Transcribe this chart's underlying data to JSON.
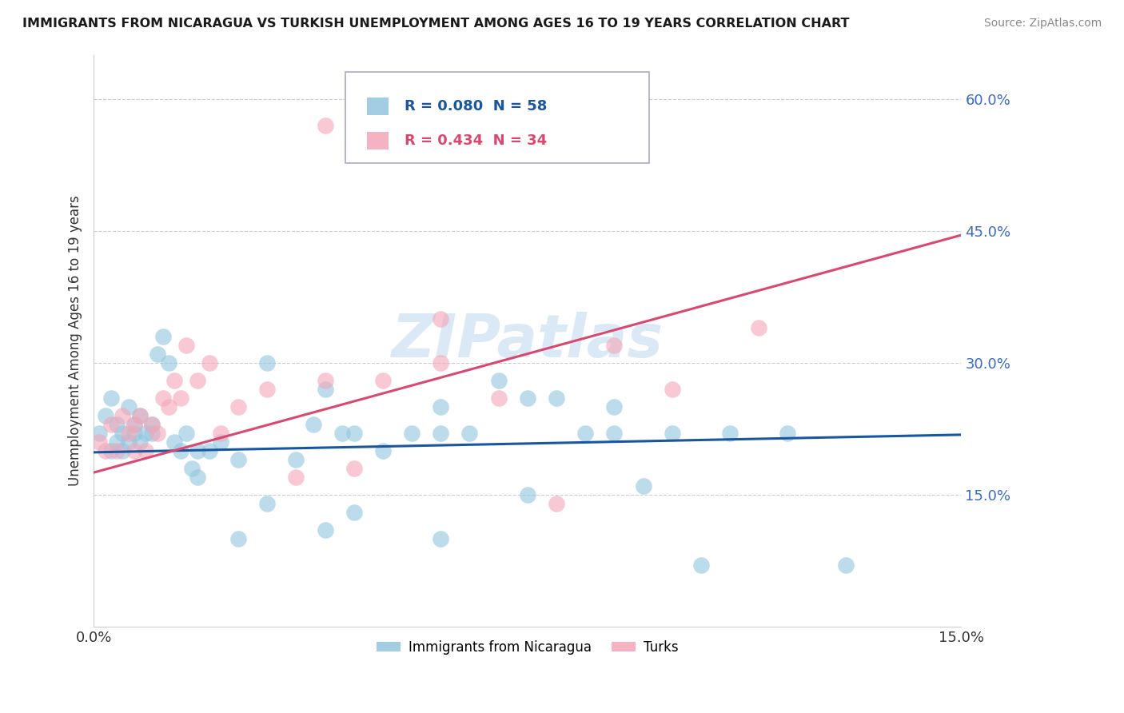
{
  "title": "IMMIGRANTS FROM NICARAGUA VS TURKISH UNEMPLOYMENT AMONG AGES 16 TO 19 YEARS CORRELATION CHART",
  "source": "Source: ZipAtlas.com",
  "ylabel": "Unemployment Among Ages 16 to 19 years",
  "xlim": [
    0.0,
    0.15
  ],
  "ylim": [
    0.0,
    0.65
  ],
  "yticks": [
    0.15,
    0.3,
    0.45,
    0.6
  ],
  "ytick_labels": [
    "15.0%",
    "30.0%",
    "45.0%",
    "60.0%"
  ],
  "xticks": [
    0.0,
    0.15
  ],
  "xtick_labels": [
    "0.0%",
    "15.0%"
  ],
  "blue_color": "#92C5DE",
  "pink_color": "#F4A6B8",
  "line_blue": "#1A56A0",
  "line_pink": "#D94870",
  "watermark": "ZIPatlas",
  "blue_line_x": [
    0.0,
    0.15
  ],
  "blue_line_y": [
    0.198,
    0.218
  ],
  "pink_line_x": [
    0.0,
    0.15
  ],
  "pink_line_y": [
    0.175,
    0.445
  ],
  "blue_scatter_x": [
    0.001,
    0.002,
    0.003,
    0.003,
    0.004,
    0.004,
    0.005,
    0.005,
    0.006,
    0.006,
    0.007,
    0.007,
    0.008,
    0.008,
    0.009,
    0.01,
    0.01,
    0.011,
    0.012,
    0.013,
    0.014,
    0.015,
    0.016,
    0.017,
    0.018,
    0.02,
    0.022,
    0.025,
    0.03,
    0.035,
    0.038,
    0.04,
    0.043,
    0.045,
    0.05,
    0.055,
    0.06,
    0.065,
    0.07,
    0.075,
    0.08,
    0.085,
    0.09,
    0.095,
    0.1,
    0.105,
    0.11,
    0.12,
    0.13,
    0.03,
    0.045,
    0.06,
    0.075,
    0.09,
    0.018,
    0.025,
    0.04,
    0.06
  ],
  "blue_scatter_y": [
    0.22,
    0.24,
    0.2,
    0.26,
    0.21,
    0.23,
    0.2,
    0.22,
    0.21,
    0.25,
    0.22,
    0.23,
    0.21,
    0.24,
    0.22,
    0.22,
    0.23,
    0.31,
    0.33,
    0.3,
    0.21,
    0.2,
    0.22,
    0.18,
    0.2,
    0.2,
    0.21,
    0.19,
    0.3,
    0.19,
    0.23,
    0.27,
    0.22,
    0.22,
    0.2,
    0.22,
    0.25,
    0.22,
    0.28,
    0.26,
    0.26,
    0.22,
    0.25,
    0.16,
    0.22,
    0.07,
    0.22,
    0.22,
    0.07,
    0.14,
    0.13,
    0.22,
    0.15,
    0.22,
    0.17,
    0.1,
    0.11,
    0.1
  ],
  "pink_scatter_x": [
    0.001,
    0.002,
    0.003,
    0.004,
    0.005,
    0.006,
    0.007,
    0.007,
    0.008,
    0.009,
    0.01,
    0.011,
    0.012,
    0.013,
    0.014,
    0.015,
    0.016,
    0.018,
    0.02,
    0.022,
    0.025,
    0.03,
    0.035,
    0.04,
    0.045,
    0.05,
    0.06,
    0.07,
    0.08,
    0.09,
    0.1,
    0.115,
    0.04,
    0.06
  ],
  "pink_scatter_y": [
    0.21,
    0.2,
    0.23,
    0.2,
    0.24,
    0.22,
    0.23,
    0.2,
    0.24,
    0.2,
    0.23,
    0.22,
    0.26,
    0.25,
    0.28,
    0.26,
    0.32,
    0.28,
    0.3,
    0.22,
    0.25,
    0.27,
    0.17,
    0.28,
    0.18,
    0.28,
    0.3,
    0.26,
    0.14,
    0.32,
    0.27,
    0.34,
    0.57,
    0.35
  ]
}
